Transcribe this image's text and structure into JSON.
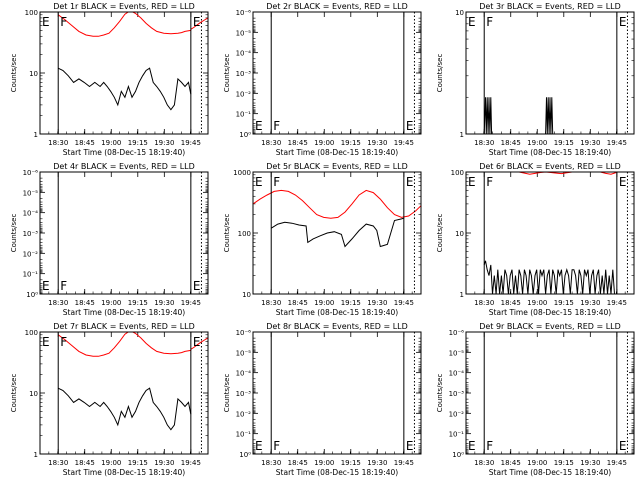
{
  "panel_common": {
    "black_color": "#000000",
    "red_color": "#ff0000",
    "x_tick_labels": [
      "18:30",
      "18:45",
      "19:00",
      "19:15",
      "19:30",
      "19:45"
    ],
    "marker_F": "F",
    "marker_E": "E"
  },
  "chart_data": [
    {
      "type": "line",
      "title": "Det 1r BLACK = Events, RED = LLD",
      "xlabel": "Start Time (08-Dec-15 18:19:40)",
      "ylabel": "Counts/sec",
      "y_scale": "log",
      "ylim": [
        1,
        100
      ],
      "y_tick_labels": [
        "1",
        "10",
        "100"
      ],
      "x_minutes_range": [
        0,
        95
      ],
      "markers": [
        {
          "label": "F",
          "at_minutes": 10.3,
          "line": "solid"
        },
        {
          "label": "E",
          "at_minutes": 85.3,
          "line": "solid"
        },
        {
          "label": "",
          "at_minutes": 91.3,
          "line": "dotted"
        }
      ],
      "series": [
        {
          "color": "red",
          "x": [
            10.3,
            14,
            18,
            22,
            26,
            30,
            33,
            36,
            39,
            42,
            45,
            48,
            51,
            54,
            57,
            60,
            63,
            66,
            70,
            74,
            78,
            80,
            82,
            85.3
          ],
          "values": [
            90,
            75,
            60,
            48,
            42,
            40,
            40,
            42,
            45,
            55,
            70,
            92,
            105,
            95,
            80,
            65,
            55,
            48,
            45,
            44,
            45,
            46,
            48,
            50
          ]
        },
        {
          "color": "red",
          "x": [
            85.3,
            87,
            89,
            91,
            93,
            95
          ],
          "values": [
            52,
            56,
            62,
            68,
            74,
            80
          ]
        },
        {
          "color": "black",
          "x": [
            10.3,
            13,
            16,
            19,
            22,
            25,
            28,
            31,
            34,
            36,
            38,
            40,
            42,
            44,
            46,
            48,
            50,
            52,
            54,
            56,
            58,
            60,
            62,
            64,
            66,
            68,
            70,
            72,
            74,
            76,
            78,
            80,
            82,
            84,
            85.3
          ],
          "values": [
            12,
            11,
            9,
            7,
            8,
            7,
            6,
            7,
            6,
            7,
            6,
            5,
            4,
            3,
            5,
            4,
            6,
            4,
            5,
            7,
            9,
            11,
            12,
            7,
            6,
            5,
            4,
            3,
            2.5,
            3,
            8,
            7,
            6,
            7,
            4.5
          ]
        }
      ]
    },
    {
      "type": "line",
      "title": "Det 2r BLACK = Events, RED = LLD",
      "xlabel": "Start Time (08-Dec-15 18:19:40)",
      "ylabel": "Counts/sec",
      "y_scale": "log",
      "ylim": [
        1,
        1e-06
      ],
      "y_tick_labels": [
        "10⁰",
        "10⁻¹",
        "10⁻²",
        "10⁻³",
        "10⁻⁴",
        "10⁻⁵",
        "10⁻⁶"
      ],
      "x_minutes_range": [
        0,
        95
      ],
      "markers": [
        {
          "label": "F",
          "at_minutes": 10.3,
          "line": "solid"
        },
        {
          "label": "E",
          "at_minutes": 85.3,
          "line": "solid"
        },
        {
          "label": "",
          "at_minutes": 91.3,
          "line": "dotted"
        }
      ],
      "series": []
    },
    {
      "type": "line",
      "title": "Det 3r BLACK = Events, RED = LLD",
      "xlabel": "Start Time (08-Dec-15 18:19:40)",
      "ylabel": "Counts/sec",
      "y_scale": "log",
      "ylim": [
        1,
        10
      ],
      "y_tick_labels": [
        "1",
        "10"
      ],
      "x_minutes_range": [
        0,
        95
      ],
      "markers": [
        {
          "label": "F",
          "at_minutes": 10.3,
          "line": "solid"
        },
        {
          "label": "E",
          "at_minutes": 85.3,
          "line": "solid"
        },
        {
          "label": "",
          "at_minutes": 91.3,
          "line": "dotted"
        }
      ],
      "series": [
        {
          "color": "black",
          "x": [
            10.3,
            11,
            11.5,
            12,
            12.5,
            13,
            13.5,
            14,
            14.5,
            15,
            45,
            45.5,
            46,
            46.5,
            47,
            47.5,
            48,
            48.5,
            49
          ],
          "values": [
            1,
            2,
            1,
            2,
            1,
            2,
            1,
            2,
            1,
            1,
            1,
            2,
            1,
            2,
            1,
            2,
            1,
            2,
            1
          ]
        }
      ]
    },
    {
      "type": "line",
      "title": "Det 4r BLACK = Events, RED = LLD",
      "xlabel": "Start Time (08-Dec-15 18:19:40)",
      "ylabel": "Counts/sec",
      "y_scale": "log",
      "ylim": [
        1,
        1e-06
      ],
      "y_tick_labels": [
        "10⁰",
        "10⁻¹",
        "10⁻²",
        "10⁻³",
        "10⁻⁴",
        "10⁻⁵",
        "10⁻⁶"
      ],
      "x_minutes_range": [
        0,
        95
      ],
      "markers": [
        {
          "label": "F",
          "at_minutes": 10.3,
          "line": "solid"
        },
        {
          "label": "E",
          "at_minutes": 85.3,
          "line": "solid"
        },
        {
          "label": "",
          "at_minutes": 91.3,
          "line": "dotted"
        }
      ],
      "series": []
    },
    {
      "type": "line",
      "title": "Det 5r BLACK = Events, RED = LLD",
      "xlabel": "Start Time (08-Dec-15 18:19:40)",
      "ylabel": "Counts/sec",
      "y_scale": "log",
      "ylim": [
        10,
        1000
      ],
      "y_tick_labels": [
        "10",
        "100",
        "1000"
      ],
      "x_minutes_range": [
        0,
        95
      ],
      "markers": [
        {
          "label": "F",
          "at_minutes": 10.3,
          "line": "solid"
        },
        {
          "label": "E",
          "at_minutes": 85.3,
          "line": "solid"
        },
        {
          "label": "",
          "at_minutes": 91.3,
          "line": "dotted"
        }
      ],
      "series": [
        {
          "color": "red",
          "x": [
            0,
            4,
            8,
            12,
            16,
            20,
            24,
            28,
            32,
            36,
            40,
            44,
            48,
            52,
            56,
            60,
            64,
            68,
            72,
            76,
            80,
            84,
            88,
            92,
            95
          ],
          "values": [
            300,
            360,
            420,
            480,
            500,
            480,
            420,
            340,
            260,
            200,
            180,
            175,
            180,
            220,
            300,
            420,
            500,
            460,
            360,
            260,
            200,
            180,
            190,
            230,
            280
          ]
        },
        {
          "color": "black",
          "x": [
            10.3,
            14,
            18,
            22,
            26,
            30,
            31,
            34,
            38,
            42,
            46,
            50,
            52,
            56,
            60,
            64,
            68,
            70,
            72,
            76,
            80,
            84,
            85.3
          ],
          "values": [
            120,
            140,
            150,
            145,
            135,
            130,
            70,
            80,
            90,
            100,
            105,
            95,
            60,
            80,
            110,
            140,
            130,
            110,
            60,
            65,
            160,
            170,
            175
          ]
        }
      ]
    },
    {
      "type": "line",
      "title": "Det 6r BLACK = Events, RED = LLD",
      "xlabel": "Start Time (08-Dec-15 18:19:40)",
      "ylabel": "Counts/sec",
      "y_scale": "log",
      "ylim": [
        1,
        100
      ],
      "y_tick_labels": [
        "1",
        "10",
        "100"
      ],
      "x_minutes_range": [
        0,
        95
      ],
      "markers": [
        {
          "label": "F",
          "at_minutes": 10.3,
          "line": "solid"
        },
        {
          "label": "E",
          "at_minutes": 85.3,
          "line": "solid"
        },
        {
          "label": "",
          "at_minutes": 91.3,
          "line": "dotted"
        }
      ],
      "series": [
        {
          "color": "red",
          "x": [
            30,
            33,
            36,
            39,
            42,
            45,
            48,
            51,
            54,
            57,
            60,
            63
          ],
          "values": [
            100,
            96,
            92,
            95,
            98,
            100,
            98,
            96,
            94,
            97,
            100,
            100
          ]
        },
        {
          "color": "red",
          "x": [
            76,
            79,
            82,
            85
          ],
          "values": [
            100,
            95,
            92,
            98
          ]
        },
        {
          "color": "black",
          "x": [
            10.3,
            11,
            12,
            13,
            14,
            15,
            16,
            17,
            18,
            19,
            20,
            21,
            22,
            23,
            24,
            25,
            26,
            27,
            28,
            29,
            30,
            31,
            32,
            33,
            34,
            35,
            36,
            37,
            38,
            39,
            40,
            41,
            42,
            43,
            44,
            45,
            46,
            47,
            48,
            49,
            50,
            51,
            52,
            53,
            54,
            55,
            56,
            57,
            58,
            59,
            60,
            61,
            62,
            63,
            64,
            65,
            66,
            67,
            68,
            69,
            70,
            71,
            72,
            73,
            74,
            75,
            76,
            77,
            78,
            79,
            80,
            81,
            82,
            83,
            84,
            85.3
          ],
          "values": [
            3,
            3.5,
            2.5,
            2,
            3,
            1,
            2,
            1,
            2.5,
            1,
            2,
            1,
            2.5,
            2,
            1,
            2,
            2.5,
            1,
            2,
            1,
            2.5,
            2,
            1,
            2.5,
            2,
            1,
            2.5,
            2,
            1,
            2,
            2.5,
            1,
            2.5,
            2,
            2.5,
            1,
            2,
            2.5,
            1,
            2.5,
            2,
            1,
            2.5,
            2,
            2.5,
            1,
            2,
            2.5,
            2,
            1,
            2.5,
            2.5,
            2,
            1,
            2.5,
            2,
            1,
            2.5,
            2,
            2.5,
            1,
            2,
            2.5,
            1,
            2,
            2.5,
            1,
            2,
            1,
            2.5,
            1,
            2,
            1,
            2.5,
            1,
            1
          ]
        }
      ]
    },
    {
      "type": "line",
      "title": "Det 7r BLACK = Events, RED = LLD",
      "xlabel": "Start Time (08-Dec-15 18:19:40)",
      "ylabel": "Counts/sec",
      "y_scale": "log",
      "ylim": [
        1,
        100
      ],
      "y_tick_labels": [
        "1",
        "10",
        "100"
      ],
      "x_minutes_range": [
        0,
        95
      ],
      "markers": [
        {
          "label": "F",
          "at_minutes": 10.3,
          "line": "solid"
        },
        {
          "label": "E",
          "at_minutes": 85.3,
          "line": "solid"
        },
        {
          "label": "",
          "at_minutes": 91.3,
          "line": "dotted"
        }
      ],
      "series": [
        {
          "color": "red",
          "x": [
            10.3,
            14,
            18,
            22,
            26,
            30,
            33,
            36,
            39,
            42,
            45,
            48,
            51,
            54,
            57,
            60,
            63,
            66,
            70,
            74,
            78,
            80,
            82,
            85.3
          ],
          "values": [
            90,
            75,
            60,
            48,
            42,
            40,
            40,
            42,
            45,
            55,
            70,
            92,
            105,
            95,
            80,
            65,
            55,
            48,
            45,
            44,
            45,
            46,
            48,
            50
          ]
        },
        {
          "color": "red",
          "x": [
            85.3,
            87,
            89,
            91,
            93,
            95
          ],
          "values": [
            52,
            56,
            62,
            68,
            74,
            80
          ]
        },
        {
          "color": "black",
          "x": [
            10.3,
            13,
            16,
            19,
            22,
            25,
            28,
            31,
            34,
            36,
            38,
            40,
            42,
            44,
            46,
            48,
            50,
            52,
            54,
            56,
            58,
            60,
            62,
            64,
            66,
            68,
            70,
            72,
            74,
            76,
            78,
            80,
            82,
            84,
            85.3
          ],
          "values": [
            12,
            11,
            9,
            7,
            8,
            7,
            6,
            7,
            6,
            7,
            6,
            5,
            4,
            3,
            5,
            4,
            6,
            4,
            5,
            7,
            9,
            11,
            12,
            7,
            6,
            5,
            4,
            3,
            2.5,
            3,
            8,
            7,
            6,
            7,
            4.5
          ]
        }
      ]
    },
    {
      "type": "line",
      "title": "Det 8r BLACK = Events, RED = LLD",
      "xlabel": "Start Time (08-Dec-15 18:19:40)",
      "ylabel": "Counts/sec",
      "y_scale": "log",
      "ylim": [
        1,
        1e-06
      ],
      "y_tick_labels": [
        "10⁰",
        "10⁻¹",
        "10⁻²",
        "10⁻³",
        "10⁻⁴",
        "10⁻⁵",
        "10⁻⁶"
      ],
      "x_minutes_range": [
        0,
        95
      ],
      "markers": [
        {
          "label": "F",
          "at_minutes": 10.3,
          "line": "solid"
        },
        {
          "label": "E",
          "at_minutes": 85.3,
          "line": "solid"
        },
        {
          "label": "",
          "at_minutes": 91.3,
          "line": "dotted"
        }
      ],
      "series": []
    },
    {
      "type": "line",
      "title": "Det 9r BLACK = Events, RED = LLD",
      "xlabel": "Start Time (08-Dec-15 18:19:40)",
      "ylabel": "Counts/sec",
      "y_scale": "log",
      "ylim": [
        1,
        1e-06
      ],
      "y_tick_labels": [
        "10⁰",
        "10⁻¹",
        "10⁻²",
        "10⁻³",
        "10⁻⁴",
        "10⁻⁵",
        "10⁻⁶"
      ],
      "x_minutes_range": [
        0,
        95
      ],
      "markers": [
        {
          "label": "F",
          "at_minutes": 10.3,
          "line": "solid"
        },
        {
          "label": "E",
          "at_minutes": 85.3,
          "line": "solid"
        },
        {
          "label": "",
          "at_minutes": 91.3,
          "line": "dotted"
        }
      ],
      "series": []
    }
  ]
}
